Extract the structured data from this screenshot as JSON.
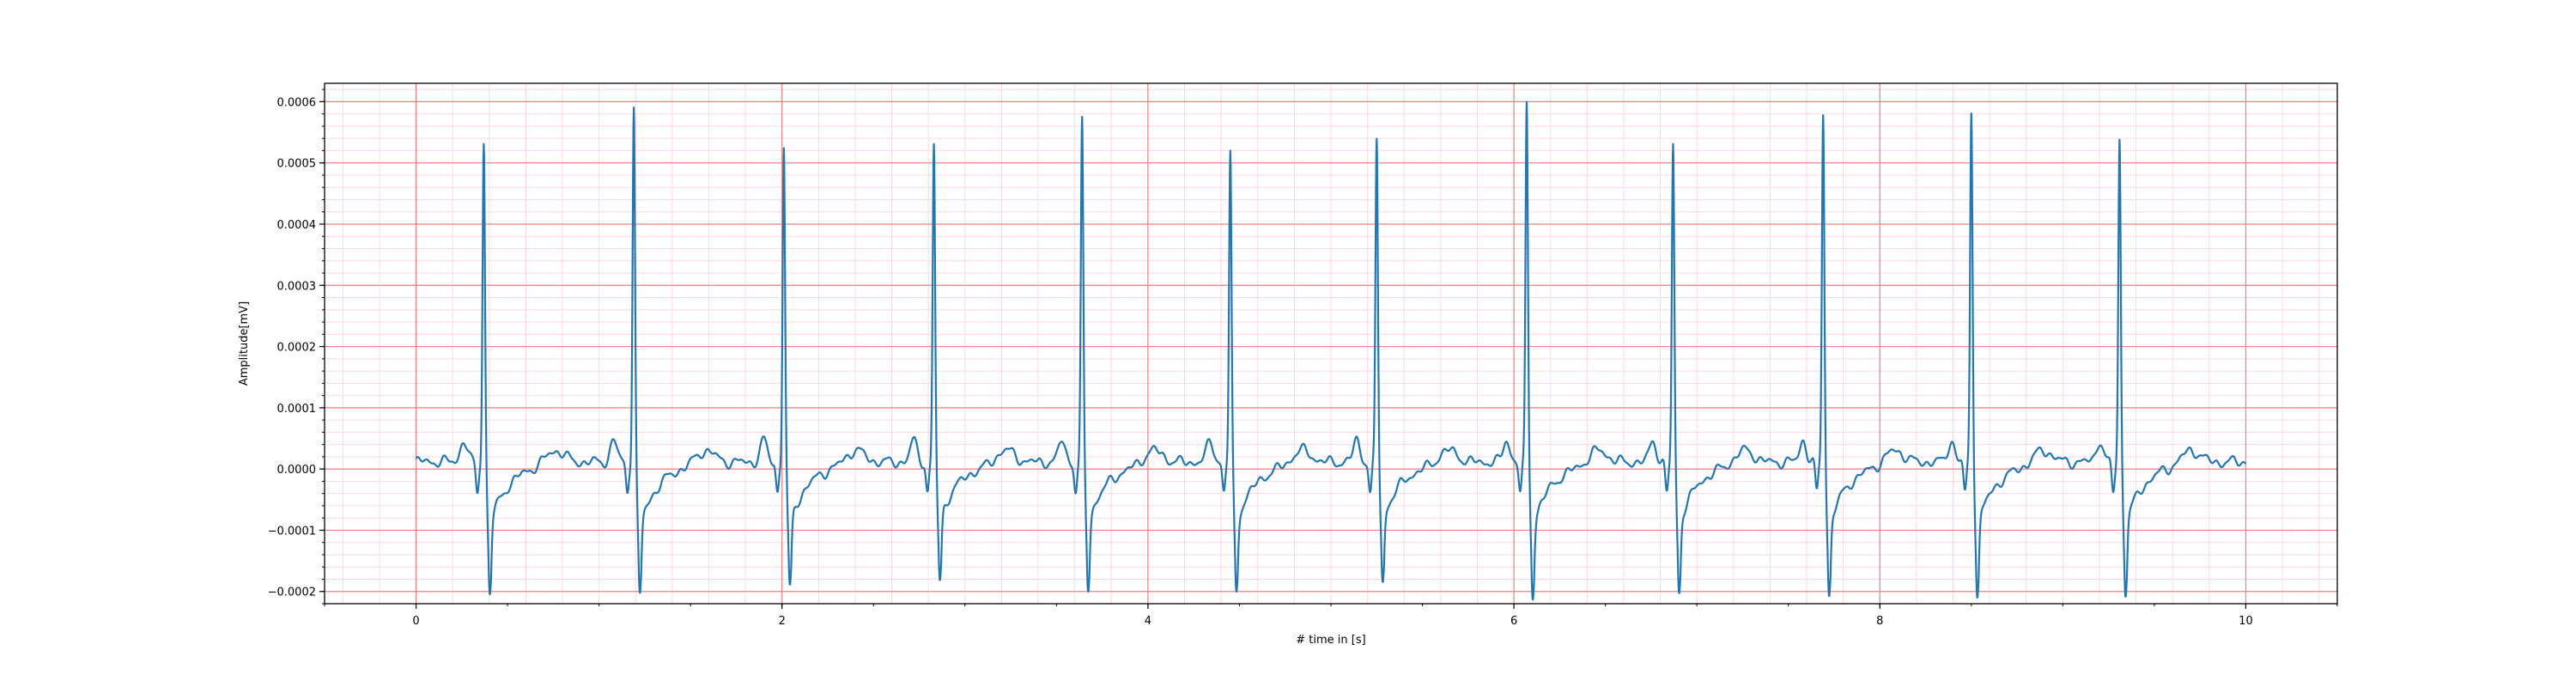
{
  "chart_data": {
    "type": "line",
    "title": "",
    "xlabel": "# time in [s]",
    "ylabel": "Amplitude[mV]",
    "xlim": [
      -0.5,
      10.5
    ],
    "ylim": [
      -0.00022,
      0.00063
    ],
    "x_ticks": [
      0,
      2,
      4,
      6,
      8,
      10
    ],
    "x_tick_labels": [
      "0",
      "2",
      "4",
      "6",
      "8",
      "10"
    ],
    "y_ticks": [
      -0.0002,
      -0.0001,
      0.0,
      0.0001,
      0.0002,
      0.0003,
      0.0004,
      0.0005,
      0.0006
    ],
    "y_tick_labels": [
      "−0.0002",
      "−0.0001",
      "0.0000",
      "0.0001",
      "0.0002",
      "0.0003",
      "0.0004",
      "0.0005",
      "0.0006"
    ],
    "grid": true,
    "major_grid_color": "#f08080",
    "minor_grid_color": "#ffd6e4",
    "line_color": "#1f77b4",
    "series": [
      {
        "beats": [
          {
            "t": 0.37,
            "r": 0.000525,
            "s": -0.000172
          },
          {
            "t": 1.19,
            "r": 0.000585,
            "s": -0.000175
          },
          {
            "t": 2.01,
            "r": 0.000515,
            "s": -0.000165
          },
          {
            "t": 2.83,
            "r": 0.000515,
            "s": -0.000155
          },
          {
            "t": 3.64,
            "r": 0.000555,
            "s": -0.000165
          },
          {
            "t": 4.45,
            "r": 0.000505,
            "s": -0.000168
          },
          {
            "t": 5.25,
            "r": 0.000525,
            "s": -0.000158
          },
          {
            "t": 6.07,
            "r": 0.000585,
            "s": -0.000175
          },
          {
            "t": 6.87,
            "r": 0.000515,
            "s": -0.00017
          },
          {
            "t": 7.69,
            "r": 0.00057,
            "s": -0.000175
          },
          {
            "t": 8.5,
            "r": 0.00057,
            "s": -0.000172
          },
          {
            "t": 9.31,
            "r": 0.000525,
            "s": -0.00017
          }
        ],
        "t_start": 0.0,
        "t_end": 10.0
      }
    ]
  }
}
